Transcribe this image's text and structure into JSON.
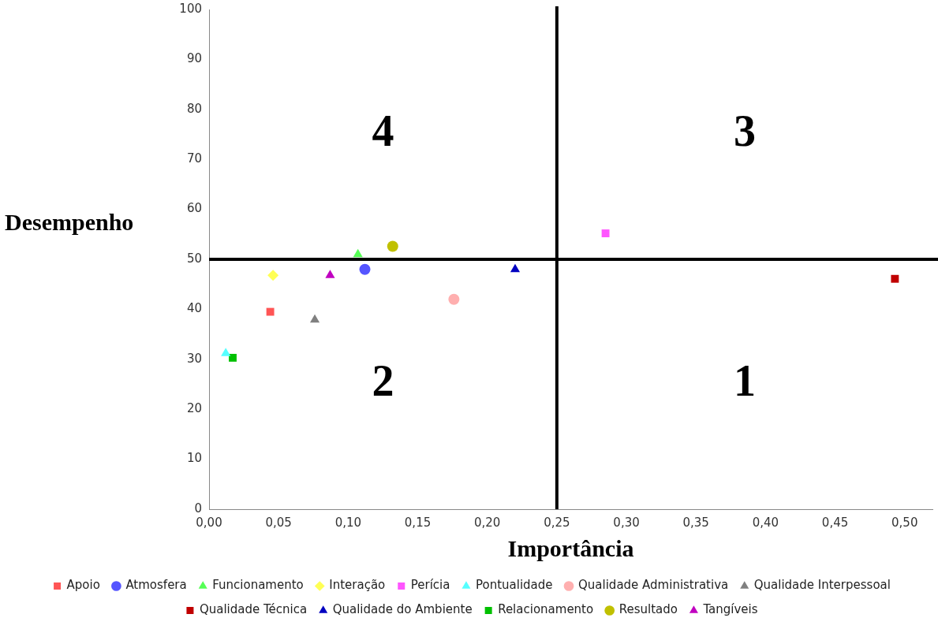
{
  "chart_data": {
    "type": "scatter",
    "xlabel": "Importância",
    "ylabel": "Desempenho",
    "xlim": [
      0,
      0.52
    ],
    "ylim": [
      0,
      100
    ],
    "xticks": [
      {
        "value": 0,
        "label": "0,00"
      },
      {
        "value": 0.05,
        "label": "0,05"
      },
      {
        "value": 0.1,
        "label": "0,10"
      },
      {
        "value": 0.15,
        "label": "0,15"
      },
      {
        "value": 0.2,
        "label": "0,20"
      },
      {
        "value": 0.25,
        "label": "0,25"
      },
      {
        "value": 0.3,
        "label": "0,30"
      },
      {
        "value": 0.35,
        "label": "0,35"
      },
      {
        "value": 0.4,
        "label": "0,40"
      },
      {
        "value": 0.45,
        "label": "0,45"
      },
      {
        "value": 0.5,
        "label": "0,50"
      }
    ],
    "yticks": [
      0,
      10,
      20,
      30,
      40,
      50,
      60,
      70,
      80,
      90,
      100
    ],
    "grid": false,
    "legend": "bottom",
    "ref_lines": [
      {
        "axis": "x",
        "value": 0.25,
        "color": "#000000"
      },
      {
        "axis": "y",
        "value": 50,
        "color": "#000000"
      }
    ],
    "annotations": [
      "1",
      "2",
      "3",
      "4"
    ],
    "series": [
      {
        "name": "Apoio",
        "color": "#ff5555",
        "marker": "square",
        "x": [
          0.044
        ],
        "values": [
          39.5
        ]
      },
      {
        "name": "Atmosfera",
        "color": "#5555ff",
        "marker": "circle",
        "x": [
          0.112
        ],
        "values": [
          48
        ]
      },
      {
        "name": "Funcionamento",
        "color": "#55ff55",
        "marker": "triangle",
        "x": [
          0.107
        ],
        "values": [
          51
        ]
      },
      {
        "name": "Interação",
        "color": "#ffff55",
        "marker": "diamond",
        "x": [
          0.046
        ],
        "values": [
          46.8
        ]
      },
      {
        "name": "Perícia",
        "color": "#ff55ff",
        "marker": "square",
        "x": [
          0.285
        ],
        "values": [
          55.2
        ]
      },
      {
        "name": "Pontualidade",
        "color": "#55ffff",
        "marker": "triangle",
        "x": [
          0.012
        ],
        "values": [
          31.2
        ]
      },
      {
        "name": "Qualidade Administrativa",
        "color": "#ffafaf",
        "marker": "circle",
        "x": [
          0.176
        ],
        "values": [
          42
        ]
      },
      {
        "name": "Qualidade Interpessoal",
        "color": "#808080",
        "marker": "triangle",
        "x": [
          0.076
        ],
        "values": [
          37.9
        ]
      },
      {
        "name": "Qualidade Técnica",
        "color": "#c00000",
        "marker": "square",
        "x": [
          0.493
        ],
        "values": [
          46.1
        ]
      },
      {
        "name": "Qualidade do Ambiente",
        "color": "#0000c0",
        "marker": "triangle",
        "x": [
          0.22
        ],
        "values": [
          48
        ]
      },
      {
        "name": "Relacionamento",
        "color": "#00c000",
        "marker": "square",
        "x": [
          0.017
        ],
        "values": [
          30.3
        ]
      },
      {
        "name": "Resultado",
        "color": "#c0c000",
        "marker": "circle",
        "x": [
          0.132
        ],
        "values": [
          52.6
        ]
      },
      {
        "name": "Tangíveis",
        "color": "#c000c0",
        "marker": "triangle",
        "x": [
          0.087
        ],
        "values": [
          46.8
        ]
      }
    ]
  }
}
